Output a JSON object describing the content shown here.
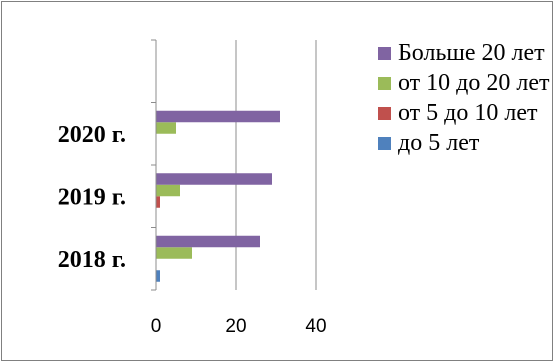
{
  "chart_data": {
    "type": "bar",
    "orientation": "horizontal",
    "categories": [
      "2018 г.",
      "2019 г.",
      "2020 г."
    ],
    "series": [
      {
        "name": "до 5 лет",
        "color": "#4F81BD",
        "values": [
          1,
          0,
          0
        ]
      },
      {
        "name": "от 5 до 10 лет",
        "color": "#C0504D",
        "values": [
          0,
          1,
          0
        ]
      },
      {
        "name": "от 10 до 20 лет",
        "color": "#9BBB59",
        "values": [
          9,
          6,
          5
        ]
      },
      {
        "name": "Больше 20 лет",
        "color": "#8064A2",
        "values": [
          26,
          29,
          31
        ]
      }
    ],
    "xticks": [
      0,
      20,
      40
    ],
    "xlim": [
      0,
      40
    ],
    "grid": true,
    "legend_position": "right",
    "legend_order": [
      3,
      2,
      1,
      0
    ]
  }
}
